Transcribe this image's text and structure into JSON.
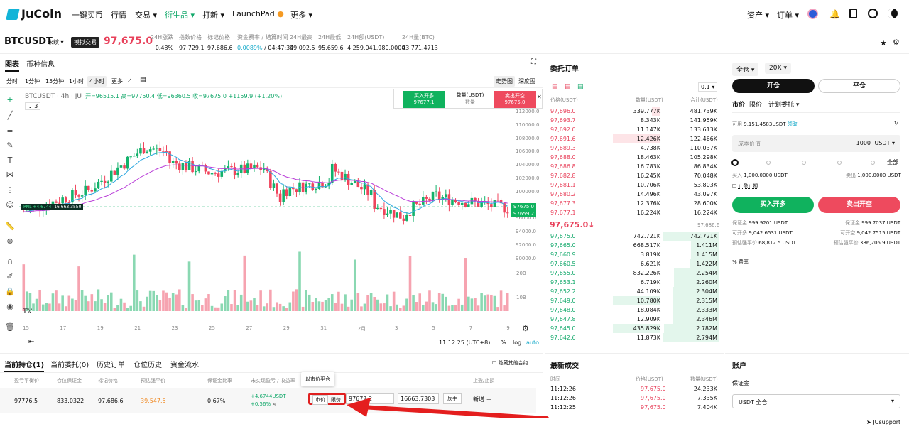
{
  "nav": {
    "brand": "JuCoin",
    "items": [
      "一键买币",
      "行情",
      "交易",
      "衍生品",
      "打新",
      "LaunchPad",
      "更多"
    ],
    "assets": "资产",
    "orders": "订单"
  },
  "ticker": {
    "symbol": "BTCUSDT",
    "type": "永续",
    "sim": "模拟交易",
    "price": "97,675.0",
    "stats": [
      {
        "label": "24H涨跌",
        "value": "+0.48%",
        "color": "green"
      },
      {
        "label": "指数价格",
        "value": "97,729.1"
      },
      {
        "label": "标记价格",
        "value": "97,686.6"
      },
      {
        "label": "资金费率 / 结算时间",
        "value": "0.0089%",
        "value2": " / 04:47:34",
        "color": "teal"
      },
      {
        "label": "24H最高",
        "value": "99,092.5"
      },
      {
        "label": "24H最低",
        "value": "95,659.6"
      },
      {
        "label": "24H额(USDT)",
        "value": "4,259,041,980.0000"
      },
      {
        "label": "24H量(BTC)",
        "value": "43,771.4713"
      }
    ]
  },
  "chart": {
    "tab_chart": "图表",
    "tab_info": "币种信息",
    "intervals": [
      "分时",
      "1分钟",
      "15分钟",
      "1小时",
      "4小时",
      "更多"
    ],
    "view_trend": "走势图",
    "view_depth": "深度图",
    "legend": "BTCUSDT · 4h · JU",
    "ohlc_o": "开=96515.1",
    "ohlc_h": "高=97750.4",
    "ohlc_l": "低=96360.5",
    "ohlc_c": "收=97675.0",
    "ohlc_chg": "+1159.9 (+1.20%)",
    "indicator_count": "3",
    "buy_label": "买入开多",
    "buy_price": "97677.1",
    "qty_label": "数量(USDT)",
    "qty_placeholder": "数量",
    "sell_label": "卖出开空",
    "sell_price": "97675.0",
    "pnl": "PNL +4.6744",
    "pnl_qty": "16 663.3550",
    "price_axis": [
      "112000.0",
      "110000.0",
      "108000.0",
      "106000.0",
      "104000.0",
      "102000.0",
      "100000.0",
      "98000.0",
      "96000.0",
      "94000.0",
      "92000.0",
      "90000.0"
    ],
    "price_tag1": "97675.0",
    "price_tag2": "97659.2",
    "vol_axis": [
      "20B",
      "10B"
    ],
    "time_axis": [
      "15",
      "17",
      "19",
      "21",
      "23",
      "25",
      "27",
      "29",
      "31",
      "2月",
      "3",
      "5",
      "7",
      "9"
    ],
    "time": "11:12:25 (UTC+8)",
    "pct": "%",
    "log": "log",
    "auto": "auto"
  },
  "chart_data": {
    "type": "candlestick",
    "x_labels": [
      "15",
      "17",
      "19",
      "21",
      "23",
      "25",
      "27",
      "29",
      "31",
      "2月",
      "3",
      "5",
      "7",
      "9"
    ],
    "y_range": [
      89000,
      113000
    ],
    "last": 97675.0,
    "volume_axis": [
      "20B",
      "10B"
    ]
  },
  "orderbook": {
    "title": "委托订单",
    "tick": "0.1",
    "col_price": "价格(USDT)",
    "col_qty": "数量(USDT)",
    "col_total": "合计(USDT)",
    "asks": [
      [
        "97,696.0",
        "339.777K",
        "481.739K"
      ],
      [
        "97,693.7",
        "8.343K",
        "141.959K"
      ],
      [
        "97,692.0",
        "11.147K",
        "133.613K"
      ],
      [
        "97,691.6",
        "12.426K",
        "122.466K"
      ],
      [
        "97,689.3",
        "4.738K",
        "110.037K"
      ],
      [
        "97,688.0",
        "18.463K",
        "105.298K"
      ],
      [
        "97,686.8",
        "16.783K",
        "86.834K"
      ],
      [
        "97,682.8",
        "16.245K",
        "70.048K"
      ],
      [
        "97,681.1",
        "10.706K",
        "53.803K"
      ],
      [
        "97,680.2",
        "14.496K",
        "43.097K"
      ],
      [
        "97,677.3",
        "12.376K",
        "28.600K"
      ],
      [
        "97,677.1",
        "16.224K",
        "16.224K"
      ]
    ],
    "ask_fill": [
      0.05,
      0,
      0,
      0.28,
      0,
      0,
      0,
      0,
      0,
      0,
      0,
      0
    ],
    "mid": "97,675.0↓",
    "mid_mark": "97,686.6",
    "bids": [
      [
        "97,675.0",
        "742.721K",
        "742.721K"
      ],
      [
        "97,665.0",
        "668.517K",
        "1.411M"
      ],
      [
        "97,660.9",
        "3.819K",
        "1.415M"
      ],
      [
        "97,660.5",
        "6.621K",
        "1.422M"
      ],
      [
        "97,655.0",
        "832.226K",
        "2.254M"
      ],
      [
        "97,653.1",
        "6.719K",
        "2.260M"
      ],
      [
        "97,652.2",
        "44.109K",
        "2.304M"
      ],
      [
        "97,649.0",
        "10.780K",
        "2.315M"
      ],
      [
        "97,648.0",
        "18.084K",
        "2.333M"
      ],
      [
        "97,647.8",
        "12.909K",
        "2.346M"
      ],
      [
        "97,645.0",
        "435.829K",
        "2.782M"
      ],
      [
        "97,642.6",
        "11.873K",
        "2.794M"
      ]
    ],
    "bid_fill": [
      0,
      0,
      0,
      0,
      0,
      0,
      0,
      0.28,
      0,
      0,
      0.28,
      0
    ]
  },
  "trades": {
    "title": "最新成交",
    "col_time": "时间",
    "col_price": "价格(USDT)",
    "col_qty": "数量(USDT)",
    "rows": [
      [
        "11:12:26",
        "97,675.0",
        "24.233K"
      ],
      [
        "11:12:26",
        "97,675.0",
        "7.335K"
      ],
      [
        "11:12:25",
        "97,675.0",
        "7.404K"
      ]
    ]
  },
  "order": {
    "margin_mode": "全仓",
    "leverage": "20X",
    "open": "开仓",
    "close": "平仓",
    "types": [
      "市价",
      "限价",
      "计划委托"
    ],
    "available_label": "可用",
    "available": "9,151.4583USDT",
    "claim": "领取",
    "cost_label": "成本价值",
    "cost_value": "1000",
    "cost_unit": "USDT",
    "all": "全部",
    "buy_label": "买入",
    "buy_amt": "1,000.0000 USDT",
    "sell_label": "卖出",
    "sell_amt": "1,000.0000 USDT",
    "tpsl": "止盈止损",
    "long_btn": "买入开多",
    "short_btn": "卖出开空",
    "info": [
      [
        "保证金",
        "999.9201 USDT",
        "保证金",
        "999.7037 USDT"
      ],
      [
        "可开多",
        "9,042.6531  USDT",
        "可开空",
        "9,042.7515 USDT"
      ],
      [
        "预估强平价",
        "68,812.5  USDT",
        "预估强平价",
        "386,206.9  USDT"
      ]
    ],
    "fee": "费率"
  },
  "account": {
    "title": "账户",
    "margin": "保证金",
    "select": "USDT 全仓"
  },
  "positions": {
    "tabs": [
      "当前持仓(1)",
      "当前委托(0)",
      "历史订单",
      "仓位历史",
      "资金流水"
    ],
    "hide_other": "隐藏其他合约",
    "cols": [
      "盈亏平衡价",
      "仓位保证金",
      "标记价格",
      "预估强平价",
      "保证金比率",
      "未实现盈亏 / 收益率",
      "以市价平仓",
      "止盈/止损"
    ],
    "row": {
      "breakeven": "97776.5",
      "margin": "833.0322",
      "mark": "97,686.6",
      "liq": "39,547.5",
      "ratio": "0.67%",
      "pnl": "+4.6744USDT",
      "roe": "+0.56%",
      "market": "市价",
      "limit": "限价",
      "limit_price": "97677.2",
      "limit_qty": "16663.7303",
      "reverse": "反手",
      "add": "新增"
    }
  },
  "support": "JUsupport"
}
